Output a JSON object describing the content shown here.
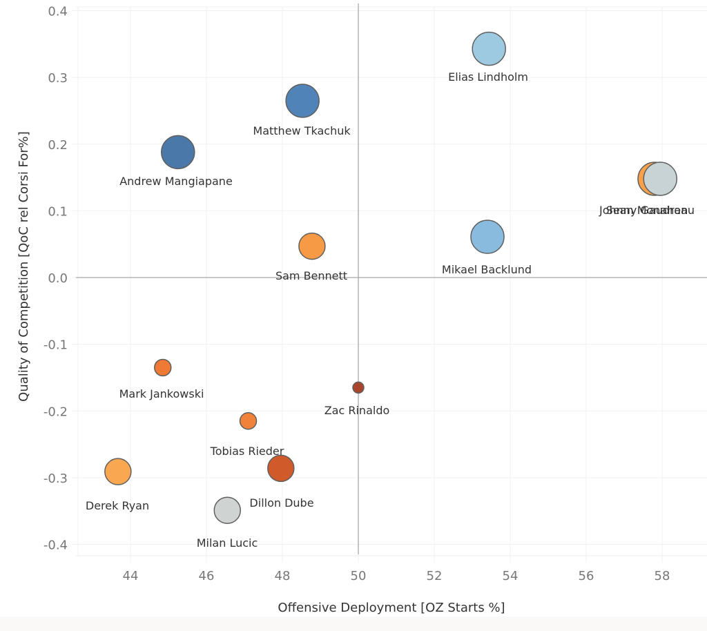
{
  "chart_data": {
    "type": "scatter",
    "title": "",
    "xlabel": "Offensive Deployment [OZ Starts %]",
    "ylabel": "Quality of Competition [QoC rel Corsi For%]",
    "xlim": [
      42.6,
      59.2
    ],
    "ylim": [
      -0.415,
      0.405
    ],
    "xticks": [
      44,
      46,
      48,
      50,
      52,
      54,
      56,
      58
    ],
    "xtick_labels": [
      "44",
      "46",
      "48",
      "50",
      "52",
      "54",
      "56",
      "58"
    ],
    "yticks": [
      0.4,
      0.3,
      0.2,
      0.1,
      0.0,
      -0.1,
      -0.2,
      -0.3,
      -0.4
    ],
    "ytick_labels": [
      "0.4",
      "0.3",
      "0.2",
      "0.1",
      "0.0",
      "-0.1",
      "-0.2",
      "-0.3",
      "-0.4"
    ],
    "reference_lines": {
      "x": 50,
      "y": 0.0
    },
    "grid": true,
    "legend": "none",
    "points": [
      {
        "name": "Elias Lindholm",
        "x": 53.44,
        "y": 0.343,
        "size": 3,
        "color": "#9ecae1"
      },
      {
        "name": "Matthew Tkachuk",
        "x": 48.53,
        "y": 0.265,
        "size": 3,
        "color": "#5084b8"
      },
      {
        "name": "Andrew Mangiapane",
        "x": 45.25,
        "y": 0.188,
        "size": 3,
        "color": "#4a78a8"
      },
      {
        "name": "Sean Monahan",
        "x": 57.8,
        "y": 0.148,
        "size": 3,
        "color": "#f7a24b"
      },
      {
        "name": "Johnny Gaudreau",
        "x": 57.95,
        "y": 0.148,
        "size": 3,
        "color": "#c8d3d6"
      },
      {
        "name": "Mikael Backlund",
        "x": 53.4,
        "y": 0.061,
        "size": 3,
        "color": "#88bbdd"
      },
      {
        "name": "Sam Bennett",
        "x": 48.78,
        "y": 0.047,
        "size": 2,
        "color": "#f79a45"
      },
      {
        "name": "Mark Jankowski",
        "x": 44.85,
        "y": -0.135,
        "size": 1,
        "color": "#ee7a35"
      },
      {
        "name": "Zac Rinaldo",
        "x": 50.0,
        "y": -0.165,
        "size": 0,
        "color": "#a9452a"
      },
      {
        "name": "Tobias Rieder",
        "x": 47.1,
        "y": -0.215,
        "size": 1,
        "color": "#f0823a"
      },
      {
        "name": "Dillon Dube",
        "x": 47.96,
        "y": -0.286,
        "size": 2,
        "color": "#d15a2b"
      },
      {
        "name": "Derek Ryan",
        "x": 43.67,
        "y": -0.291,
        "size": 2,
        "color": "#f9a851"
      },
      {
        "name": "Milan Lucic",
        "x": 46.55,
        "y": -0.349,
        "size": 2,
        "color": "#cfd3d1"
      }
    ]
  }
}
